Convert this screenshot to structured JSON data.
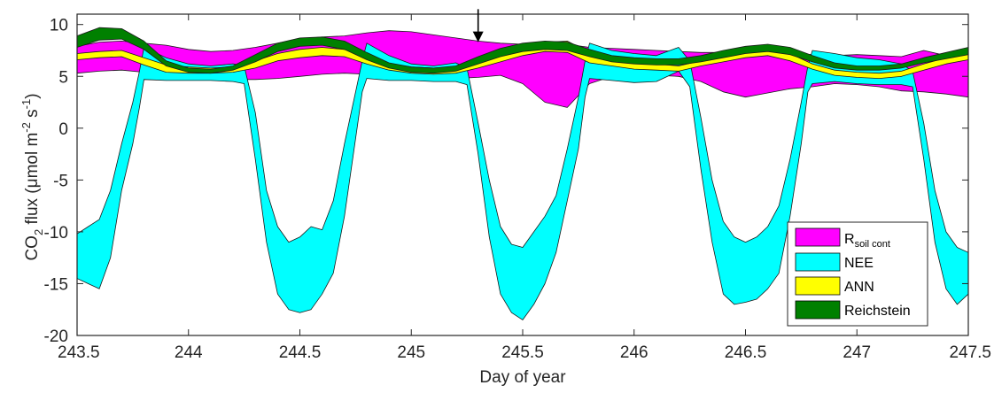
{
  "chart_data": {
    "type": "area",
    "xlabel": "Day of year",
    "ylabel": {
      "main": "CO",
      "sub2": "2",
      "mid": " flux (μmol m",
      "sup1": "-2",
      "mid2": " s",
      "sup2": "-1",
      "end": ")"
    },
    "xlim": [
      243.5,
      247.5
    ],
    "ylim": [
      -20,
      11
    ],
    "x_ticks": [
      243.5,
      244,
      244.5,
      245,
      245.5,
      246,
      246.5,
      247,
      247.5
    ],
    "x_tick_labels": [
      "243.5",
      "244",
      "244.5",
      "245",
      "245.5",
      "246",
      "246.5",
      "247",
      "247.5"
    ],
    "y_ticks": [
      10,
      5,
      0,
      -5,
      -10,
      -15,
      -20
    ],
    "y_tick_labels": [
      "10",
      "5",
      "0",
      "-5",
      "-10",
      "-15",
      "-20"
    ],
    "annotation": {
      "type": "arrow",
      "x": 245.3,
      "y_from": 10.8,
      "y_to": 8.3
    },
    "legend": {
      "position": "bottom-right",
      "entries": [
        {
          "label": "R",
          "sub": "soil cont",
          "color": "#ff00ff"
        },
        {
          "label": "NEE",
          "color": "#00ffff"
        },
        {
          "label": "ANN",
          "color": "#ffff00"
        },
        {
          "label": "Reichstein",
          "color": "#008000"
        }
      ]
    },
    "series": [
      {
        "name": "R soil cont",
        "color": "#ff00ff",
        "x": [
          243.5,
          243.6,
          243.7,
          243.8,
          243.9,
          244.0,
          244.1,
          244.2,
          244.3,
          244.4,
          244.5,
          244.6,
          244.7,
          244.8,
          244.9,
          245.0,
          245.1,
          245.2,
          245.3,
          245.4,
          245.5,
          245.6,
          245.7,
          245.8,
          245.9,
          246.0,
          246.1,
          246.2,
          246.3,
          246.4,
          246.5,
          246.6,
          246.7,
          246.8,
          246.9,
          247.0,
          247.1,
          247.2,
          247.3,
          247.4,
          247.5
        ],
        "upper": [
          7.9,
          8.3,
          8.4,
          8.2,
          8.0,
          7.6,
          7.4,
          7.5,
          7.8,
          8.2,
          8.6,
          8.8,
          8.9,
          9.2,
          9.4,
          9.3,
          9.0,
          8.7,
          8.4,
          8.2,
          8.1,
          8.2,
          8.1,
          7.8,
          7.7,
          7.6,
          7.5,
          7.4,
          7.3,
          7.3,
          7.4,
          7.3,
          7.2,
          7.1,
          7.0,
          7.1,
          7.0,
          6.9,
          7.5,
          7.0,
          6.9
        ],
        "lower": [
          5.3,
          5.5,
          5.6,
          5.4,
          5.0,
          4.8,
          4.7,
          4.7,
          4.7,
          4.8,
          5.0,
          5.2,
          5.3,
          5.2,
          5.1,
          5.0,
          4.9,
          4.8,
          4.9,
          5.1,
          4.3,
          2.5,
          2.0,
          4.3,
          5.0,
          5.1,
          5.1,
          5.0,
          4.5,
          3.5,
          3.0,
          3.4,
          3.8,
          4.0,
          4.3,
          4.2,
          4.0,
          3.6,
          3.5,
          3.3,
          3.0
        ]
      },
      {
        "name": "NEE",
        "color": "#00ffff",
        "x": [
          243.5,
          243.55,
          243.6,
          243.65,
          243.7,
          243.75,
          243.78,
          243.8,
          243.9,
          244.0,
          244.1,
          244.2,
          244.25,
          244.3,
          244.35,
          244.4,
          244.45,
          244.5,
          244.55,
          244.6,
          244.65,
          244.7,
          244.75,
          244.78,
          244.8,
          244.9,
          245.0,
          245.1,
          245.2,
          245.25,
          245.3,
          245.35,
          245.4,
          245.45,
          245.5,
          245.55,
          245.6,
          245.65,
          245.7,
          245.75,
          245.78,
          245.8,
          245.9,
          246.0,
          246.1,
          246.2,
          246.25,
          246.3,
          246.35,
          246.4,
          246.45,
          246.5,
          246.55,
          246.6,
          246.65,
          246.7,
          246.75,
          246.78,
          246.8,
          246.9,
          247.0,
          247.1,
          247.2,
          247.25,
          247.3,
          247.35,
          247.4,
          247.45,
          247.5
        ],
        "upper": [
          -10.2,
          -9.5,
          -8.8,
          -6.0,
          -1.5,
          2.5,
          5.5,
          7.8,
          6.8,
          6.2,
          6.0,
          6.2,
          6.0,
          1.5,
          -6.0,
          -9.5,
          -11.0,
          -10.5,
          -9.5,
          -9.8,
          -7.0,
          -1.5,
          3.5,
          6.5,
          8.2,
          7.0,
          6.2,
          6.0,
          6.3,
          5.8,
          0.5,
          -5.0,
          -9.5,
          -11.2,
          -11.5,
          -10.0,
          -8.5,
          -6.5,
          -2.0,
          3.0,
          6.5,
          8.2,
          7.5,
          7.2,
          7.0,
          7.8,
          6.5,
          1.0,
          -5.0,
          -9.0,
          -10.5,
          -11.0,
          -10.5,
          -9.5,
          -7.5,
          -3.0,
          2.5,
          6.0,
          7.5,
          7.2,
          6.8,
          6.6,
          6.2,
          5.5,
          0.5,
          -6.0,
          -10.0,
          -11.5,
          -12.0
        ],
        "lower": [
          -14.5,
          -15.0,
          -15.5,
          -12.5,
          -6.0,
          -1.5,
          2.0,
          4.7,
          4.6,
          4.6,
          4.6,
          4.5,
          4.3,
          -3.0,
          -11.0,
          -16.0,
          -17.5,
          -17.8,
          -17.5,
          -16.0,
          -14.0,
          -8.5,
          -1.0,
          3.5,
          4.8,
          4.6,
          4.6,
          4.5,
          4.5,
          4.2,
          -2.5,
          -10.5,
          -16.0,
          -17.8,
          -18.5,
          -17.0,
          -15.0,
          -12.0,
          -7.0,
          -2.0,
          3.0,
          4.8,
          4.6,
          4.4,
          4.5,
          5.5,
          4.0,
          -4.0,
          -11.0,
          -16.0,
          -17.0,
          -16.8,
          -16.5,
          -15.5,
          -14.0,
          -8.5,
          -1.5,
          3.5,
          4.3,
          4.5,
          4.3,
          4.2,
          4.2,
          4.0,
          -3.0,
          -11.0,
          -15.5,
          -17.0,
          -16.0
        ]
      },
      {
        "name": "ANN",
        "color": "#ffff00",
        "x": [
          243.5,
          243.6,
          243.7,
          243.8,
          243.9,
          244.0,
          244.1,
          244.2,
          244.3,
          244.4,
          244.5,
          244.6,
          244.7,
          244.8,
          244.9,
          245.0,
          245.1,
          245.2,
          245.3,
          245.4,
          245.5,
          245.6,
          245.7,
          245.8,
          245.9,
          246.0,
          246.1,
          246.2,
          246.3,
          246.4,
          246.5,
          246.6,
          246.7,
          246.8,
          246.9,
          247.0,
          247.1,
          247.2,
          247.3,
          247.4,
          247.5
        ],
        "upper": [
          7.2,
          7.4,
          7.5,
          6.8,
          6.1,
          5.9,
          5.8,
          5.9,
          6.5,
          7.2,
          7.6,
          7.8,
          7.6,
          6.9,
          6.2,
          5.9,
          5.8,
          5.9,
          6.3,
          7.0,
          7.7,
          8.3,
          8.4,
          7.3,
          6.6,
          6.3,
          6.2,
          6.0,
          6.5,
          7.0,
          7.4,
          7.6,
          7.2,
          6.2,
          5.6,
          5.4,
          5.3,
          5.5,
          6.2,
          6.8,
          7.2
        ],
        "lower": [
          6.6,
          6.8,
          6.9,
          6.1,
          5.4,
          5.3,
          5.3,
          5.4,
          5.8,
          6.5,
          6.8,
          7.0,
          6.9,
          6.2,
          5.6,
          5.3,
          5.2,
          5.3,
          5.8,
          6.4,
          7.0,
          7.4,
          7.3,
          6.3,
          6.0,
          5.7,
          5.6,
          5.5,
          6.0,
          6.4,
          6.8,
          7.0,
          6.5,
          5.7,
          5.1,
          4.9,
          4.8,
          5.0,
          5.6,
          6.2,
          6.6
        ]
      },
      {
        "name": "Reichstein",
        "color": "#008000",
        "x": [
          243.5,
          243.6,
          243.7,
          243.8,
          243.9,
          244.0,
          244.1,
          244.2,
          244.3,
          244.4,
          244.5,
          244.6,
          244.7,
          244.8,
          244.9,
          245.0,
          245.1,
          245.2,
          245.3,
          245.4,
          245.5,
          245.6,
          245.7,
          245.8,
          245.9,
          246.0,
          246.1,
          246.2,
          246.3,
          246.4,
          246.5,
          246.6,
          246.7,
          246.8,
          246.9,
          247.0,
          247.1,
          247.2,
          247.3,
          247.4,
          247.5
        ],
        "upper": [
          8.9,
          9.7,
          9.6,
          8.4,
          6.5,
          5.8,
          5.7,
          6.0,
          7.1,
          8.2,
          8.7,
          8.8,
          8.4,
          7.3,
          6.3,
          5.9,
          5.8,
          6.0,
          6.9,
          7.7,
          8.2,
          8.4,
          8.3,
          7.6,
          7.0,
          6.8,
          6.7,
          6.7,
          7.0,
          7.5,
          7.9,
          8.1,
          7.8,
          7.0,
          6.3,
          6.0,
          6.0,
          6.2,
          6.8,
          7.3,
          7.8
        ],
        "lower": [
          7.8,
          8.5,
          8.6,
          7.6,
          6.0,
          5.4,
          5.3,
          5.6,
          6.4,
          7.4,
          7.9,
          8.0,
          7.6,
          6.6,
          5.8,
          5.4,
          5.3,
          5.5,
          6.2,
          6.9,
          7.4,
          7.6,
          7.5,
          6.9,
          6.4,
          6.2,
          6.1,
          6.1,
          6.4,
          6.8,
          7.2,
          7.4,
          7.1,
          6.4,
          5.8,
          5.6,
          5.6,
          5.8,
          6.3,
          6.7,
          7.1
        ]
      }
    ]
  }
}
